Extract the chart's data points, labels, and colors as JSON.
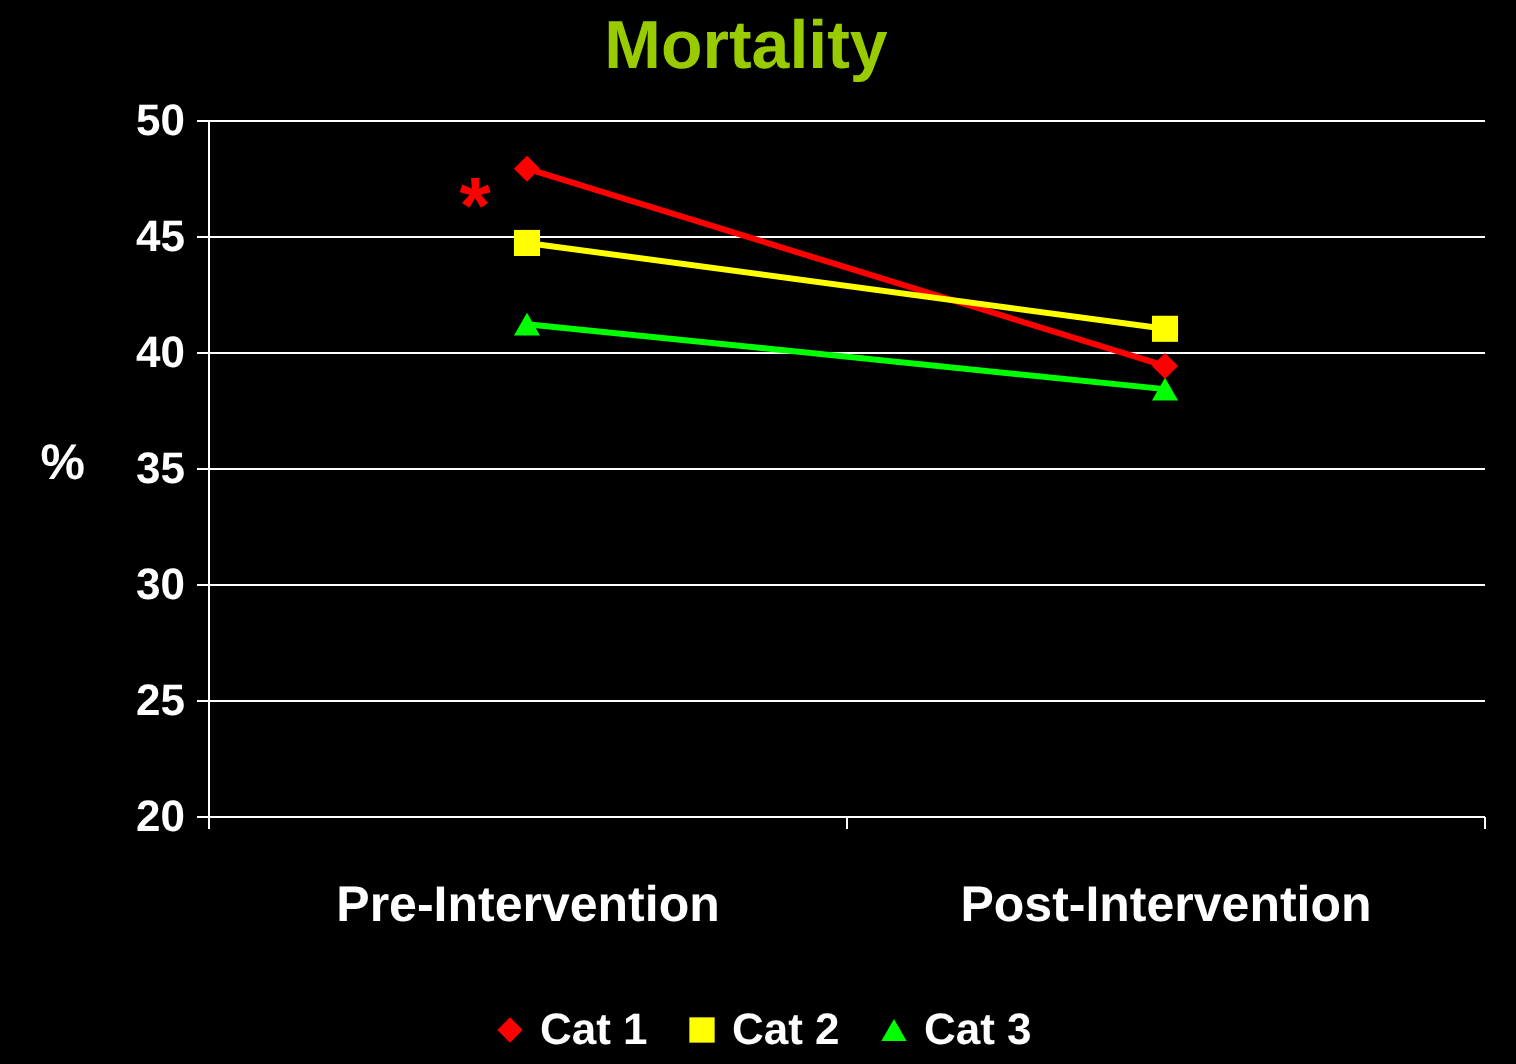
{
  "chart_data": {
    "type": "line",
    "title": "Mortality",
    "ylabel": "%",
    "categories": [
      "Pre-Intervention",
      "Post-Intervention"
    ],
    "series": [
      {
        "name": "Cat 1",
        "color": "#ff0000",
        "marker": "diamond",
        "values": [
          47.9,
          39.4
        ]
      },
      {
        "name": "Cat 2",
        "color": "#ffff00",
        "marker": "square",
        "values": [
          44.7,
          41.0
        ]
      },
      {
        "name": "Cat 3",
        "color": "#00ff00",
        "marker": "triangle",
        "values": [
          41.2,
          38.4
        ]
      }
    ],
    "ylim": [
      20,
      50
    ],
    "yticks": [
      20,
      25,
      30,
      35,
      40,
      45,
      50
    ],
    "grid": "y",
    "legend": "bottom",
    "line_style": "solid",
    "annotations": [
      {
        "text": "*",
        "x": "Pre-Intervention",
        "y": 47.9
      }
    ]
  }
}
